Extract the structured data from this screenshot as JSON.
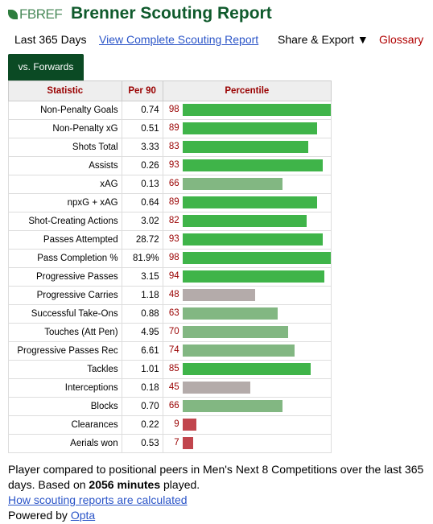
{
  "header": {
    "logo": "FBREF",
    "title": "Brenner Scouting Report"
  },
  "nav": [
    "Last 365 Days",
    "View Complete Scouting Report",
    "Share & Export ▼",
    "Glossary"
  ],
  "tab": "vs. Forwards",
  "table": {
    "columns": [
      "Statistic",
      "Per 90",
      "Percentile"
    ],
    "groups": [
      [
        {
          "statistic": "Non-Penalty Goals",
          "per90": "0.74",
          "percentile": 98,
          "color": "#3fb449"
        },
        {
          "statistic": "Non-Penalty xG",
          "per90": "0.51",
          "percentile": 89,
          "color": "#3fb449"
        },
        {
          "statistic": "Shots Total",
          "per90": "3.33",
          "percentile": 83,
          "color": "#3fb449"
        },
        {
          "statistic": "Assists",
          "per90": "0.26",
          "percentile": 93,
          "color": "#3fb449"
        },
        {
          "statistic": "xAG",
          "per90": "0.13",
          "percentile": 66,
          "color": "#82b782"
        },
        {
          "statistic": "npxG + xAG",
          "per90": "0.64",
          "percentile": 89,
          "color": "#3fb449"
        },
        {
          "statistic": "Shot-Creating Actions",
          "per90": "3.02",
          "percentile": 82,
          "color": "#3fb449"
        }
      ],
      [
        {
          "statistic": "Passes Attempted",
          "per90": "28.72",
          "percentile": 93,
          "color": "#3fb449"
        },
        {
          "statistic": "Pass Completion %",
          "per90": "81.9%",
          "percentile": 98,
          "color": "#3fb449"
        },
        {
          "statistic": "Progressive Passes",
          "per90": "3.15",
          "percentile": 94,
          "color": "#3fb449"
        },
        {
          "statistic": "Progressive Carries",
          "per90": "1.18",
          "percentile": 48,
          "color": "#b4abaa"
        },
        {
          "statistic": "Successful Take-Ons",
          "per90": "0.88",
          "percentile": 63,
          "color": "#82b782"
        },
        {
          "statistic": "Touches (Att Pen)",
          "per90": "4.95",
          "percentile": 70,
          "color": "#82b782"
        },
        {
          "statistic": "Progressive Passes Rec",
          "per90": "6.61",
          "percentile": 74,
          "color": "#82b782"
        }
      ],
      [
        {
          "statistic": "Tackles",
          "per90": "1.01",
          "percentile": 85,
          "color": "#3fb449"
        },
        {
          "statistic": "Interceptions",
          "per90": "0.18",
          "percentile": 45,
          "color": "#b4abaa"
        },
        {
          "statistic": "Blocks",
          "per90": "0.70",
          "percentile": 66,
          "color": "#82b782"
        },
        {
          "statistic": "Clearances",
          "per90": "0.22",
          "percentile": 9,
          "color": "#c1454d"
        },
        {
          "statistic": "Aerials won",
          "per90": "0.53",
          "percentile": 7,
          "color": "#c1454d"
        }
      ]
    ]
  },
  "footer": {
    "text": "Player compared to positional peers in Men's Next 8 Competitions over the last 365 days. Based on",
    "minutes": "2056 minutes",
    "text_end": "played.",
    "link": "How scouting reports are calculated",
    "powered": "Powered by",
    "provider": "Opta"
  }
}
